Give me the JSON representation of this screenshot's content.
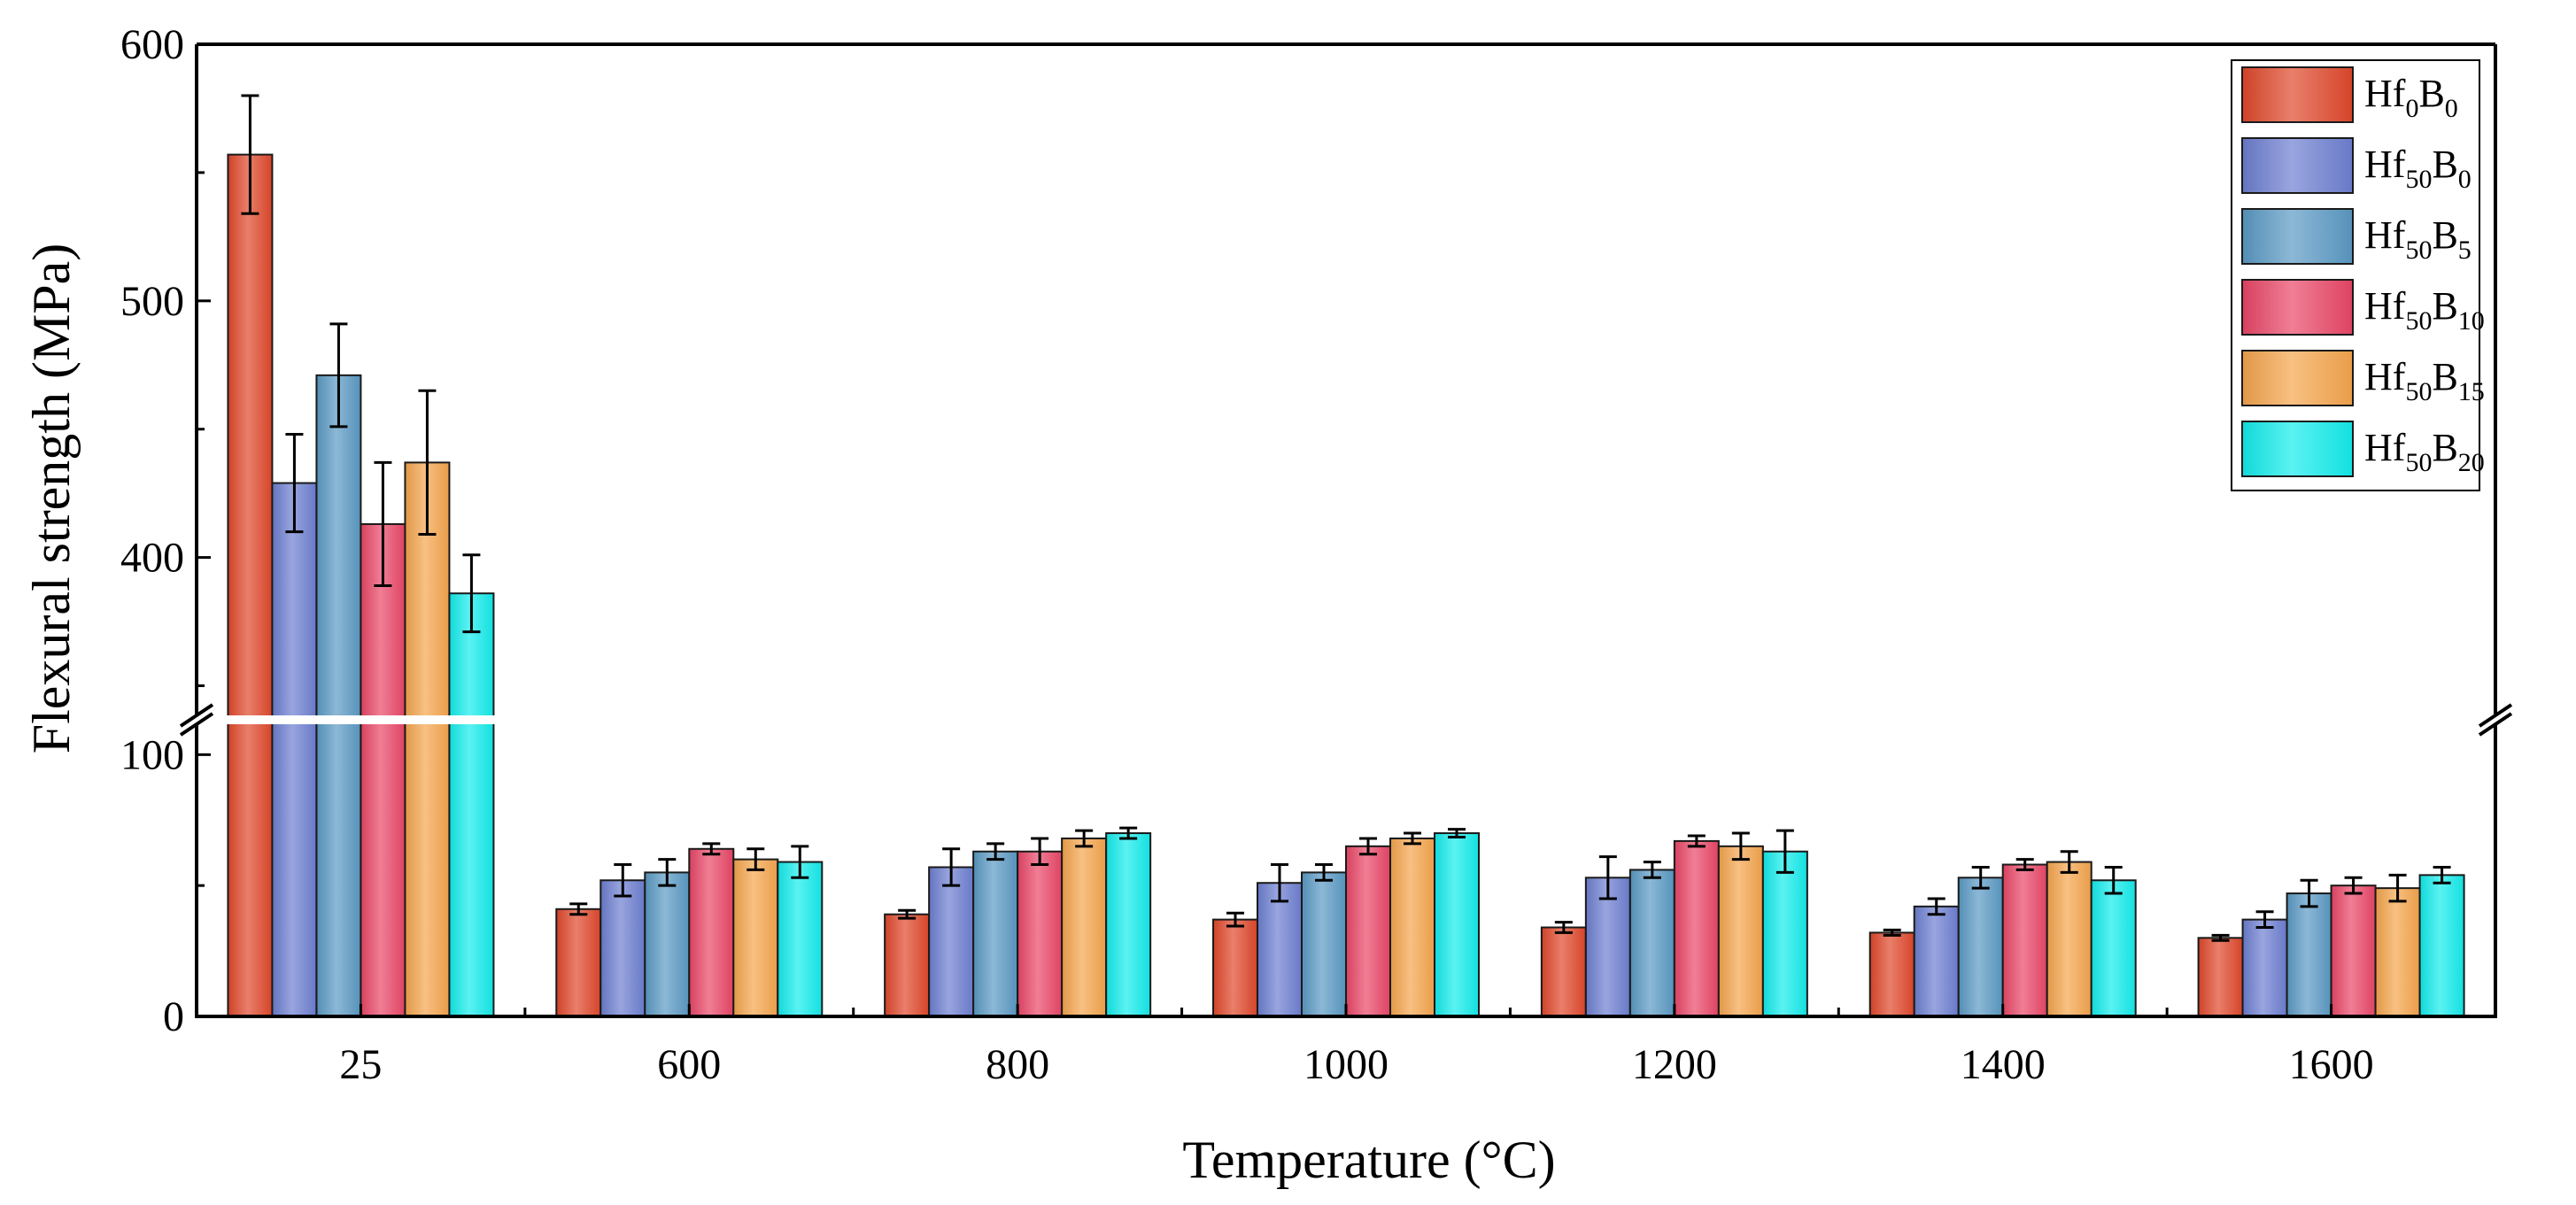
{
  "chart_data": {
    "type": "bar",
    "xlabel": "Temperature (°C)",
    "ylabel": "Flexural strength (MPa)",
    "categories": [
      "25",
      "600",
      "800",
      "1000",
      "1200",
      "1400",
      "1600"
    ],
    "axis_break": {
      "lower_range": [
        0,
        115
      ],
      "upper_range": [
        335,
        600
      ]
    },
    "yticks_lower": [
      0,
      100
    ],
    "yticks_upper": [
      400,
      500,
      600
    ],
    "legend_position": "top-right",
    "series": [
      {
        "name": "Hf0B0",
        "label_main": "Hf",
        "sub1": "0",
        "label_mid": "B",
        "sub2": "0",
        "color": "#e0482b",
        "values": [
          557,
          41,
          39,
          37,
          34,
          32,
          30
        ],
        "errors": [
          23,
          2,
          1.5,
          2.5,
          2,
          1,
          1
        ]
      },
      {
        "name": "Hf50B0",
        "label_main": "Hf",
        "sub1": "50",
        "label_mid": "B",
        "sub2": "0",
        "color": "#6d7fd1",
        "values": [
          429,
          52,
          57,
          51,
          53,
          42,
          37
        ],
        "errors": [
          19,
          6,
          7,
          7,
          8,
          3,
          3
        ]
      },
      {
        "name": "Hf50B5",
        "label_main": "Hf",
        "sub1": "50",
        "label_mid": "B",
        "sub2": "5",
        "color": "#5a9ac4",
        "values": [
          471,
          55,
          63,
          55,
          56,
          53,
          47
        ],
        "errors": [
          20,
          5,
          3,
          3,
          3,
          4,
          5
        ]
      },
      {
        "name": "Hf50B10",
        "label_main": "Hf",
        "sub1": "50",
        "label_mid": "B",
        "sub2": "10",
        "color": "#ea4767",
        "values": [
          413,
          64,
          63,
          65,
          67,
          58,
          50
        ],
        "errors": [
          24,
          2,
          5,
          3,
          2,
          2,
          3
        ]
      },
      {
        "name": "Hf50B15",
        "label_main": "Hf",
        "sub1": "50",
        "label_mid": "B",
        "sub2": "15",
        "color": "#f5a54d",
        "values": [
          437,
          60,
          68,
          68,
          65,
          59,
          49
        ],
        "errors": [
          28,
          4,
          3,
          2,
          5,
          4,
          5
        ]
      },
      {
        "name": "Hf50B20",
        "label_main": "Hf",
        "sub1": "50",
        "label_mid": "B",
        "sub2": "20",
        "color": "#14ecec",
        "values": [
          386,
          59,
          70,
          70,
          63,
          52,
          54
        ],
        "errors": [
          15,
          6,
          2,
          1.5,
          8,
          5,
          3
        ]
      }
    ]
  }
}
